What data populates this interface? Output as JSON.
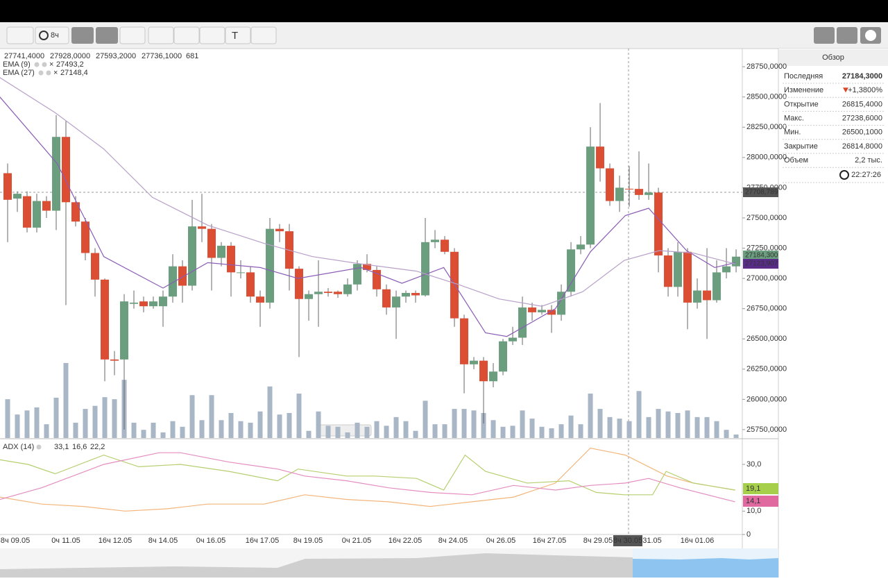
{
  "toolbar": {
    "interval": "8ч"
  },
  "overview": {
    "title": "Обзор",
    "rows": [
      {
        "label": "Последняя",
        "value": "27184,3000"
      },
      {
        "label": "Изменение",
        "value": "+1,3800%"
      },
      {
        "label": "Открытие",
        "value": "26815,4000"
      },
      {
        "label": "Макс.",
        "value": "27238,6000"
      },
      {
        "label": "Мин.",
        "value": "26500,1000"
      },
      {
        "label": "Закрытие",
        "value": "26814,8000"
      },
      {
        "label": "Объем",
        "value": "2,2 тыс."
      }
    ],
    "time": "22:27:26"
  },
  "price_tags": [
    "27708,789",
    "27184,300",
    "27123,907"
  ],
  "x_axis": {
    "labels": [
      "8ч 09.05",
      "0ч 11.05",
      "16ч 12.05",
      "8ч 14.05",
      "0ч 16.05",
      "16ч 17.05",
      "8ч 19.05",
      "0ч 21.05",
      "16ч 22.05",
      "8ч 24.05",
      "0ч 26.05",
      "16ч 27.05",
      "8ч 29.05",
      "8ч 30.05",
      "31.05",
      "16ч 01.06"
    ]
  },
  "chart_data": [
    {
      "type": "candlestick",
      "xlim": [
        -0.786,
        75.64
      ],
      "ylim": [
        25675,
        28900
      ],
      "yticks": [
        {
          "value": 25750,
          "label": "25750,0000"
        },
        {
          "value": 26000,
          "label": "26000,0000"
        },
        {
          "value": 26250,
          "label": "26250,0000"
        },
        {
          "value": 26500,
          "label": "26500,0000"
        },
        {
          "value": 26750,
          "label": "26750,0000"
        },
        {
          "value": 27000,
          "label": "27000,0000"
        },
        {
          "value": 27250,
          "label": "27250,0000"
        },
        {
          "value": 27500,
          "label": "27500,0000"
        },
        {
          "value": 27750,
          "label": "27750,0000"
        },
        {
          "value": 28000,
          "label": "28000,0000"
        },
        {
          "value": 28250,
          "label": "28250,0000"
        },
        {
          "value": 28500,
          "label": "28500,0000"
        },
        {
          "value": 28750,
          "label": "28750,0000"
        }
      ],
      "colors": {
        "up": "#6b9e7f",
        "down": "#dc4e34",
        "volume": "#a8b6c6"
      },
      "hover_labels": [
        "27741,4000",
        "27928,0000",
        "27593,2000",
        "27736,1000"
      ],
      "open": [
        27870,
        27660,
        27680,
        27420,
        27640,
        27560,
        28170,
        27630,
        27470,
        27210,
        26990,
        26330,
        26330,
        26790,
        26810,
        26770,
        26770,
        26850,
        27100,
        26940,
        27430,
        27410,
        27170,
        27270,
        27050,
        27050,
        26850,
        26800,
        27410,
        27390,
        27080,
        26830,
        26870,
        26890,
        26890,
        26870,
        26950,
        27120,
        27070,
        26910,
        26760,
        26850,
        26880,
        26860,
        27300,
        27320,
        27220,
        26670,
        26290,
        26320,
        26150,
        26230,
        26480,
        26510,
        26760,
        26720,
        26740,
        26700,
        26890,
        27240,
        27280,
        28090,
        27910,
        27640,
        27741.4,
        27740,
        27690,
        27710,
        27190,
        26930,
        27220,
        26800,
        26900,
        26820,
        27050,
        27100
      ],
      "close": [
        27650,
        27700,
        27420,
        27640,
        27560,
        28170,
        27630,
        27470,
        27210,
        26990,
        26330,
        26320,
        26810,
        26800,
        26770,
        26810,
        26850,
        27100,
        26940,
        27430,
        27410,
        27170,
        27270,
        27050,
        27050,
        26850,
        26800,
        27410,
        27390,
        27080,
        26830,
        26870,
        26890,
        26880,
        26870,
        26950,
        27120,
        27070,
        26910,
        26760,
        26850,
        26880,
        26860,
        27300,
        27320,
        27220,
        26670,
        26290,
        26320,
        26150,
        26230,
        26480,
        26510,
        26760,
        26720,
        26740,
        26700,
        26890,
        27240,
        27280,
        28090,
        27910,
        27640,
        27750,
        27736.1,
        27690,
        27710,
        27190,
        26930,
        27220,
        26800,
        26900,
        26820,
        27050,
        27100,
        27180
      ],
      "high": [
        27950,
        27720,
        27720,
        27700,
        27680,
        28350,
        28300,
        27680,
        27500,
        27250,
        27000,
        26400,
        26870,
        26900,
        26850,
        26850,
        26900,
        27200,
        27150,
        27650,
        27700,
        27450,
        27300,
        27300,
        27150,
        27100,
        26900,
        27500,
        27450,
        27450,
        27100,
        26900,
        27150,
        26920,
        26900,
        27000,
        27150,
        27200,
        27100,
        26950,
        26900,
        26900,
        26900,
        27500,
        27400,
        27350,
        27250,
        26700,
        26350,
        26350,
        26300,
        26500,
        26600,
        26850,
        26800,
        26780,
        26780,
        26950,
        27300,
        27350,
        28250,
        28450,
        27950,
        27850,
        27928,
        28050,
        27950,
        27750,
        27250,
        27300,
        27250,
        27000,
        27250,
        27150,
        27250,
        27240
      ],
      "low": [
        27300,
        27550,
        27380,
        27380,
        27500,
        27400,
        26780,
        27430,
        27150,
        26850,
        26150,
        26200,
        25750,
        26750,
        26720,
        26750,
        26600,
        26800,
        26800,
        26900,
        27300,
        26900,
        27100,
        26850,
        27000,
        26800,
        26600,
        26750,
        27300,
        26900,
        26350,
        26650,
        26600,
        26850,
        26840,
        26850,
        26900,
        27050,
        26850,
        26700,
        26500,
        26800,
        26800,
        26850,
        27250,
        27200,
        26600,
        26050,
        26250,
        25800,
        26100,
        26200,
        26450,
        26450,
        26650,
        26700,
        26550,
        26650,
        26850,
        27200,
        27250,
        27800,
        27600,
        27550,
        27593.2,
        27650,
        27650,
        27050,
        26850,
        26850,
        26580,
        26750,
        26500,
        26800,
        27000,
        27050
      ],
      "volume": [
        7600,
        4600,
        5400,
        6000,
        2700,
        7900,
        14700,
        3000,
        5700,
        6300,
        8000,
        7600,
        11400,
        3000,
        1600,
        3000,
        1100,
        3300,
        2200,
        8400,
        3500,
        8400,
        3500,
        4900,
        3300,
        3000,
        5200,
        10100,
        4600,
        4900,
        8700,
        1400,
        5200,
        2400,
        2200,
        1100,
        3000,
        2200,
        3300,
        2400,
        4100,
        3300,
        1400,
        7300,
        2700,
        2700,
        5700,
        5700,
        5400,
        4900,
        3500,
        2200,
        2400,
        5400,
        3800,
        2200,
        1900,
        2700,
        4400,
        2700,
        8700,
        5700,
        4100,
        3800,
        3300,
        9200,
        4100,
        5700,
        5200,
        4900,
        5400,
        4100,
        4100,
        3300,
        1600,
        681
      ],
      "series": [
        {
          "name": "EMA (9)",
          "color": "#8a5cb5",
          "last": "27493,2",
          "x": [
            -0.8,
            5.1,
            9.9,
            16,
            20.6,
            26,
            29.9,
            36.4,
            40.6,
            44.9,
            49.2,
            51.4,
            56.4,
            60,
            63.6,
            66,
            69.9,
            72.8,
            74.9
          ],
          "values": [
            28500,
            27950,
            27180,
            26920,
            27130,
            27090,
            27000,
            27090,
            26960,
            27090,
            26550,
            26520,
            26750,
            27220,
            27520,
            27580,
            27230,
            27090,
            27130
          ]
        },
        {
          "name": "EMA (27)",
          "color": "#b7a0c8",
          "last": "27148,4",
          "x": [
            -0.8,
            4.9,
            9.9,
            14.9,
            20.6,
            26.4,
            31.4,
            36.4,
            42.1,
            46.4,
            50.6,
            55,
            59.2,
            63.5,
            67.1,
            70.6,
            74.9
          ],
          "values": [
            28660,
            28370,
            28070,
            27670,
            27440,
            27290,
            27180,
            27120,
            27060,
            26950,
            26830,
            26770,
            26890,
            27150,
            27230,
            27210,
            27120
          ]
        }
      ]
    },
    {
      "type": "line",
      "title": "ADX (14)",
      "xlim": [
        -0.786,
        75.64
      ],
      "ylim": [
        0,
        40.7
      ],
      "yticks": [
        0,
        {
          "value": 10,
          "label": "10,0"
        },
        {
          "value": 30,
          "label": "30,0"
        }
      ],
      "series": [
        {
          "color": "#f3b57a",
          "value_label": "33,1",
          "x": [
            -0.8,
            3.5,
            7.8,
            12.1,
            16.4,
            20.6,
            26.4,
            30.6,
            34.9,
            39.2,
            43.5,
            47.8,
            52.1,
            56.4,
            60,
            63.6,
            67.9,
            70.6,
            74.9
          ],
          "values": [
            16,
            13,
            12,
            10,
            11,
            13,
            13,
            17,
            15,
            14,
            12,
            14,
            16,
            22,
            37,
            34,
            25,
            22,
            19
          ]
        },
        {
          "color": "#b5cf6e",
          "value_label": "16,6",
          "tag": "19,1",
          "x": [
            -0.8,
            2.1,
            4.9,
            9.9,
            13.5,
            17.8,
            22.8,
            27.8,
            29.9,
            34.9,
            37.8,
            42.1,
            44.9,
            47.1,
            49.2,
            53.5,
            57.8,
            60.6,
            63.5,
            66.4,
            67.8,
            70.6,
            74.9
          ],
          "values": [
            32,
            30,
            26,
            34,
            29,
            30,
            27,
            23,
            28,
            25,
            25,
            24,
            19,
            34,
            27,
            22,
            23,
            18,
            17,
            17,
            27,
            22,
            19
          ]
        },
        {
          "color": "#e58cc0",
          "value_label": "22,2",
          "tag": "14,1",
          "x": [
            -0.8,
            3.5,
            9.9,
            15.6,
            17.8,
            22.8,
            27.8,
            30.6,
            34.9,
            39.2,
            43.5,
            47.8,
            52.1,
            56.4,
            60,
            63.6,
            66,
            69.2,
            74.9
          ],
          "values": [
            15,
            20,
            30,
            35,
            35,
            31,
            28,
            25,
            23,
            20,
            18,
            17,
            21,
            19,
            21,
            22,
            24,
            20,
            14
          ]
        }
      ]
    }
  ]
}
